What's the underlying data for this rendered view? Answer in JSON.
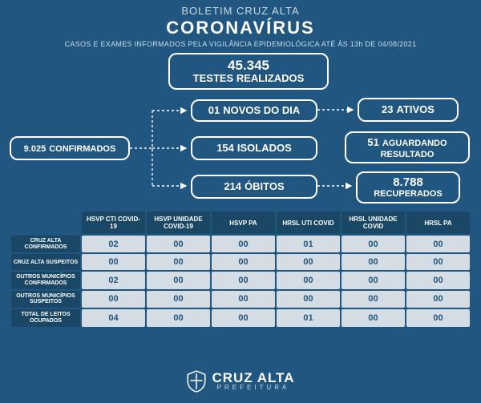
{
  "header": {
    "bulletin": "BOLETIM CRUZ ALTA",
    "title": "CORONAVÍRUS",
    "subtitle": "CASOS E EXAMES INFORMADOS PELA VIGILÂNCIA EPIDEMIOLÓGICA ATÉ ÀS 13h DE 04/08/2021"
  },
  "boxes": {
    "testes": {
      "num": "45.345",
      "lbl": "TESTES REALIZADOS"
    },
    "conf": {
      "num": "9.025",
      "lbl": "CONFIRMADOS"
    },
    "novos": {
      "num": "01",
      "lbl": "NOVOS DO DIA"
    },
    "isol": {
      "num": "154",
      "lbl": "ISOLADOS"
    },
    "obitos": {
      "num": "214",
      "lbl": "ÓBITOS"
    },
    "ativos": {
      "num": "23",
      "lbl": "ATIVOS"
    },
    "aguard": {
      "num": "51",
      "lbl": "AGUARDANDO",
      "lbl2": "RESULTADO"
    },
    "recup": {
      "num": "8.788",
      "lbl": "RECUPERADOS"
    }
  },
  "table": {
    "columns": [
      "HSVP CTI COVID-19",
      "HSVP UNIDADE COVID-19",
      "HSVP PA",
      "HRSL UTI COVID",
      "HRSL UNIDADE COVID",
      "HRSL PA"
    ],
    "rows": [
      {
        "label": "CRUZ ALTA CONFIRMADOS",
        "cells": [
          "02",
          "00",
          "00",
          "01",
          "00",
          "00"
        ]
      },
      {
        "label": "CRUZ ALTA SUSPEITOS",
        "cells": [
          "00",
          "00",
          "00",
          "00",
          "00",
          "00"
        ]
      },
      {
        "label": "OUTROS MUNICÍPIOS CONFIRMADOS",
        "cells": [
          "02",
          "00",
          "00",
          "00",
          "00",
          "00"
        ]
      },
      {
        "label": "OUTROS MUNICÍPIOS SUSPEITOS",
        "cells": [
          "00",
          "00",
          "00",
          "00",
          "00",
          "00"
        ]
      },
      {
        "label": "TOTAL DE LEITOS OCUPADOS",
        "cells": [
          "04",
          "00",
          "00",
          "01",
          "00",
          "00"
        ]
      }
    ]
  },
  "footer": {
    "name": "CRUZ ALTA",
    "sub": "PREFEITURA"
  },
  "colors": {
    "background": "#20567f",
    "box_border": "#ffffff",
    "table_header_bg": "#194765",
    "table_cell_bg": "#d3dde3",
    "table_cell_text": "#20567f"
  }
}
